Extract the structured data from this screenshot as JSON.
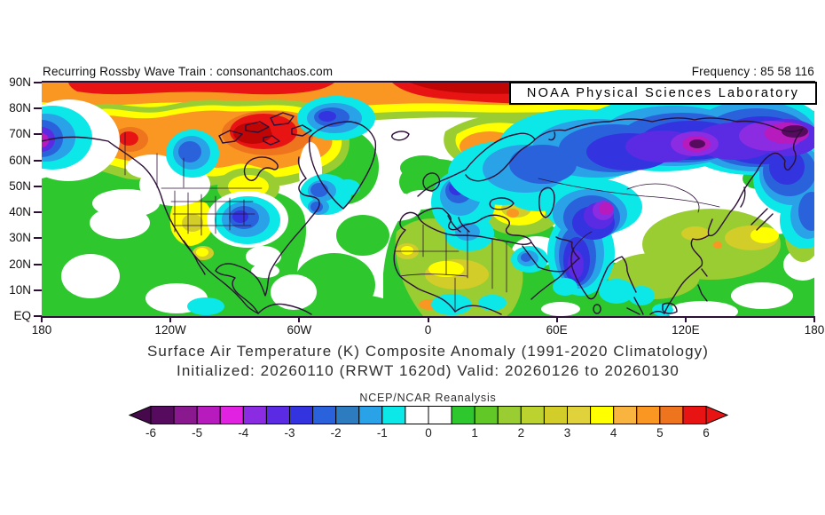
{
  "header": {
    "left_text": "Recurring Rossby Wave Train : consonantchaos.com",
    "right_text": "Frequency : 85 58 116",
    "noaa_box": "NOAA Physical Sciences Laboratory"
  },
  "captions": {
    "line1": "Surface Air Temperature (K) Composite Anomaly (1991-2020 Climatology)",
    "line2": "Initialized: 20260110 (RRWT 1620d) Valid: 20260126 to 20260130",
    "source": "NCEP/NCAR Reanalysis"
  },
  "axes": {
    "y_ticks": [
      "90N",
      "80N",
      "70N",
      "60N",
      "50N",
      "40N",
      "30N",
      "20N",
      "10N",
      "EQ"
    ],
    "x_ticks": [
      "180",
      "120W",
      "60W",
      "0",
      "60E",
      "120E",
      "180"
    ]
  },
  "chart_data": {
    "type": "heatmap",
    "subtype": "filled-contour composite anomaly map, cylindrical lat/lon",
    "title": "Surface Air Temperature (K) Composite Anomaly (1991-2020 Climatology)",
    "subtitle": "Initialized: 20260110 (RRWT 1620d) Valid: 20260126 to 20260130",
    "source": "NCEP/NCAR Reanalysis",
    "units": "K",
    "lat_range": [
      "EQ",
      "90N"
    ],
    "lon_range": [
      "180W",
      "180E"
    ],
    "x_tick_labels": [
      "180",
      "120W",
      "60W",
      "0",
      "60E",
      "120E",
      "180"
    ],
    "y_tick_labels": [
      "90N",
      "80N",
      "70N",
      "60N",
      "50N",
      "40N",
      "30N",
      "20N",
      "10N",
      "EQ"
    ],
    "colorbar": {
      "tick_labels": [
        "-6",
        "-5",
        "-4",
        "-3",
        "-2",
        "-1",
        "0",
        "1",
        "2",
        "3",
        "4",
        "5",
        "6"
      ],
      "segment_step": 0.5,
      "segment_colors": [
        "#570b5e",
        "#8a188f",
        "#b81bbd",
        "#e122e1",
        "#8b2be2",
        "#5a2be2",
        "#3333e0",
        "#2a62dc",
        "#2e7cc0",
        "#2aa2e8",
        "#0ce8e8",
        "#ffffff",
        "#ffffff",
        "#2ec82e",
        "#62c828",
        "#9acd32",
        "#bcd22e",
        "#d2cd28",
        "#e0d23a",
        "#ffff00",
        "#f9b440",
        "#fa9622",
        "#ee741e",
        "#e81414"
      ],
      "arrow_left_color": "#46094b",
      "arrow_right_color": "#e81414"
    },
    "anomaly_centers": [
      {
        "region": "Arctic cap 80-90N from 120W to 90E",
        "sign": "warm",
        "value_k": "+4 to +6"
      },
      {
        "region": "Baffin Island / NE Canada",
        "sign": "warm",
        "value_k": "+5 to +6"
      },
      {
        "region": "Alaska / Yukon",
        "sign": "warm",
        "value_k": "+3 to +5"
      },
      {
        "region": "Scandinavia / NW Russia",
        "sign": "warm",
        "value_k": "+3 to +4"
      },
      {
        "region": "Bering Sea near 65N 178W",
        "sign": "cold",
        "value_k": "-3 to -4.5"
      },
      {
        "region": "West-central Canada",
        "sign": "cold",
        "value_k": "-2 to -3"
      },
      {
        "region": "Southeastern United States",
        "sign": "cold",
        "value_k": "-2 to -3"
      },
      {
        "region": "North Atlantic near 45N 55W",
        "sign": "cold",
        "value_k": "-2 to -3"
      },
      {
        "region": "Seas east of Greenland",
        "sign": "cold",
        "value_k": "-2 to -3"
      },
      {
        "region": "Central Europe / Balkans",
        "sign": "cold",
        "value_k": "-2.5 to -3.5"
      },
      {
        "region": "Siberia broad band 50-75N, 60E-180E",
        "sign": "cold",
        "value_k": "-3 to -6"
      },
      {
        "region": "Siberia core near 70N 110E",
        "sign": "cold",
        "value_k": "-5.5 to -6"
      },
      {
        "region": "NE Siberia core near 72N 170E",
        "sign": "cold",
        "value_k": "-5.5 to -6"
      },
      {
        "region": "Central Asia / Himalaya core",
        "sign": "cold",
        "value_k": "-4 to -5"
      },
      {
        "region": "India",
        "sign": "cold",
        "value_k": "-2 to -3"
      },
      {
        "region": "Turkey / Caspian / Middle East",
        "sign": "warm",
        "value_k": "+2 to +3"
      },
      {
        "region": "Sahara / Sahel Africa",
        "sign": "warm",
        "value_k": "+2 to +3"
      },
      {
        "region": "East China / Japan",
        "sign": "warm",
        "value_k": "+2 to +3"
      },
      {
        "region": "Tropics generally",
        "sign": "warm",
        "value_k": "+1 with neutral patches"
      }
    ]
  }
}
